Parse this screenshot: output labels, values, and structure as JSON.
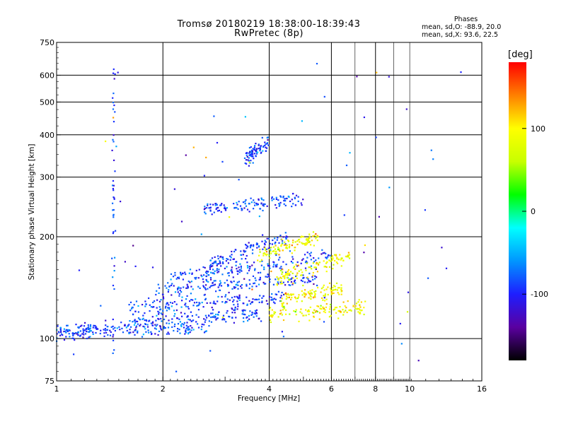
{
  "title": {
    "line1": "Tromsø 20180219 18:38:00-18:39:43",
    "line2": "RwPretec (8p)"
  },
  "phases": {
    "title": "Phases",
    "o_line": "mean, sd,O: -88.9, 20.0",
    "x_line": "mean, sd,X:  93.6, 22.5"
  },
  "colorbar": {
    "title": "[deg]",
    "ticks": [
      100,
      0,
      -100
    ],
    "range": [
      -180,
      180
    ],
    "colors": [
      "#000000",
      "#5a00a0",
      "#1e1eff",
      "#0096ff",
      "#00ffff",
      "#00ff00",
      "#c8ff00",
      "#ffff00",
      "#ff8000",
      "#ff0000"
    ]
  },
  "chart_data": {
    "type": "scatter",
    "title": "Tromsø 20180219 18:38:00-18:39:43 RwPretec (8p)",
    "xlabel": "Frequency [MHz]",
    "ylabel": "Stationary phase Virtual Height [km]",
    "xscale": "log",
    "yscale": "log",
    "xlim": [
      1,
      16
    ],
    "ylim": [
      75,
      750
    ],
    "x_ticks": [
      1,
      2,
      4,
      6,
      8,
      10,
      16
    ],
    "y_ticks": [
      75,
      100,
      200,
      300,
      400,
      500,
      600,
      750
    ],
    "x_grid": [
      2,
      4,
      6,
      8
    ],
    "x_minor_grid": [
      7,
      9,
      10
    ],
    "y_grid": [
      100,
      200,
      300,
      400,
      500,
      600
    ],
    "color_meaning": "phase [deg]",
    "series": [
      {
        "name": "O",
        "phase_mean": -88.9,
        "phase_sd": 20.0,
        "traces": [
          {
            "f0": 1.0,
            "f1": 1.25,
            "h0": 104,
            "h1": 106
          },
          {
            "f0": 1.25,
            "f1": 2.7,
            "h0": 106,
            "h1": 108
          },
          {
            "f0": 1.6,
            "f1": 3.8,
            "h0": 112,
            "h1": 118
          },
          {
            "f0": 1.6,
            "f1": 4.4,
            "h0": 124,
            "h1": 132
          },
          {
            "f0": 1.9,
            "f1": 5.5,
            "h0": 138,
            "h1": 152
          },
          {
            "f0": 2.1,
            "f1": 6.0,
            "h0": 150,
            "h1": 175
          },
          {
            "f0": 2.7,
            "f1": 4.5,
            "h0": 165,
            "h1": 200
          },
          {
            "f0": 2.6,
            "f1": 5.0,
            "h0": 240,
            "h1": 260
          },
          {
            "f0": 3.4,
            "f1": 4.0,
            "h0": 340,
            "h1": 380
          }
        ],
        "vertical_column": {
          "f": 1.45,
          "h0": 90,
          "h1": 640
        }
      },
      {
        "name": "X",
        "phase_mean": 93.6,
        "phase_sd": 22.5,
        "traces": [
          {
            "f0": 4.0,
            "f1": 7.5,
            "h0": 118,
            "h1": 124
          },
          {
            "f0": 4.3,
            "f1": 6.5,
            "h0": 130,
            "h1": 140
          },
          {
            "f0": 4.2,
            "f1": 6.8,
            "h0": 150,
            "h1": 175
          },
          {
            "f0": 3.7,
            "f1": 5.5,
            "h0": 175,
            "h1": 200
          }
        ]
      }
    ]
  }
}
